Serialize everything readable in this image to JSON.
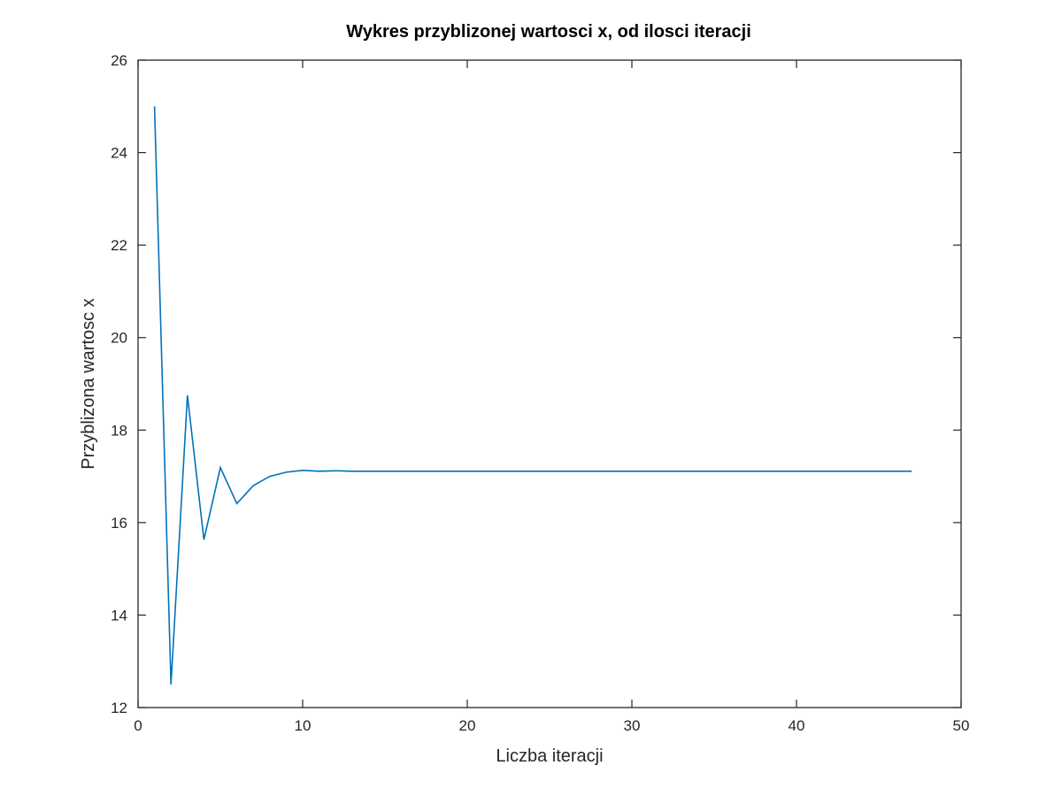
{
  "chart_data": {
    "type": "line",
    "title": "Wykres przyblizonej wartosci x, od ilosci iteracji",
    "xlabel": "Liczba iteracji",
    "ylabel": "Przyblizona wartosc x",
    "xlim": [
      0,
      50
    ],
    "ylim": [
      12,
      26
    ],
    "xticks": [
      "0",
      "10",
      "20",
      "30",
      "40",
      "50"
    ],
    "yticks": [
      "12",
      "14",
      "16",
      "18",
      "20",
      "22",
      "24",
      "26"
    ],
    "grid": false,
    "series": [
      {
        "color": "#0072bd",
        "x": [
          1,
          2,
          3,
          4,
          5,
          6,
          7,
          8,
          9,
          10,
          11,
          12,
          13,
          14,
          15,
          16,
          17,
          18,
          19,
          20,
          21,
          22,
          23,
          24,
          25,
          26,
          27,
          28,
          29,
          30,
          31,
          32,
          33,
          34,
          35,
          36,
          37,
          38,
          39,
          40,
          41,
          42,
          43,
          44,
          45,
          46,
          47
        ],
        "y": [
          25.0,
          12.5,
          18.75,
          15.63,
          17.19,
          16.41,
          16.8,
          17.0,
          17.09,
          17.13,
          17.11,
          17.12,
          17.11,
          17.11,
          17.11,
          17.11,
          17.11,
          17.11,
          17.11,
          17.11,
          17.11,
          17.11,
          17.11,
          17.11,
          17.11,
          17.11,
          17.11,
          17.11,
          17.11,
          17.11,
          17.11,
          17.11,
          17.11,
          17.11,
          17.11,
          17.11,
          17.11,
          17.11,
          17.11,
          17.11,
          17.11,
          17.11,
          17.11,
          17.11,
          17.11,
          17.11,
          17.11
        ]
      }
    ]
  }
}
